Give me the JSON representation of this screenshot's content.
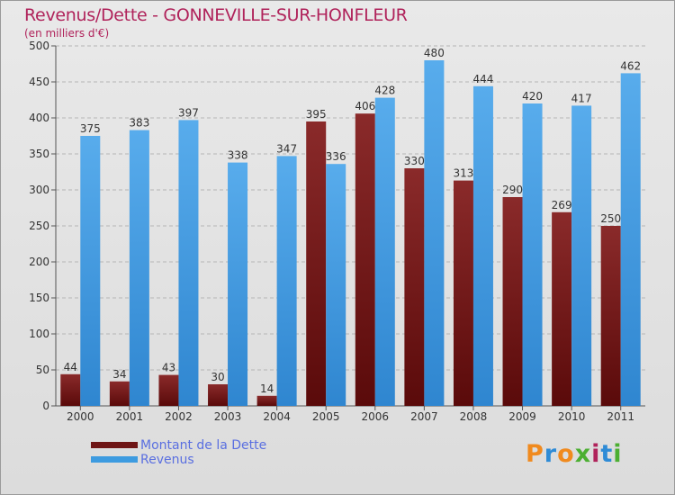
{
  "chart_data": {
    "type": "bar",
    "title": "Revenus/Dette - GONNEVILLE-SUR-HONFLEUR",
    "subtitle": "(en milliers d'€)",
    "categories": [
      "2000",
      "2001",
      "2002",
      "2003",
      "2004",
      "2005",
      "2006",
      "2007",
      "2008",
      "2009",
      "2010",
      "2011"
    ],
    "series": [
      {
        "name": "Montant de la Dette",
        "color": "#7a1a1a",
        "values": [
          44,
          34,
          43,
          30,
          14,
          395,
          406,
          330,
          313,
          290,
          269,
          250
        ]
      },
      {
        "name": "Revenus",
        "color": "#3d9be0",
        "values": [
          375,
          383,
          397,
          338,
          347,
          336,
          428,
          480,
          444,
          420,
          417,
          462
        ]
      }
    ],
    "ylim": [
      0,
      500
    ],
    "yticks": [
      0,
      50,
      100,
      150,
      200,
      250,
      300,
      350,
      400,
      450,
      500
    ],
    "grid": true,
    "legend": "bottom-left"
  },
  "brand": {
    "text": "Proxiti",
    "colors": [
      "#f08a1e",
      "#2e8bd6",
      "#f08a1e",
      "#4caf32",
      "#b0235b",
      "#2e8bd6",
      "#4caf32"
    ]
  }
}
